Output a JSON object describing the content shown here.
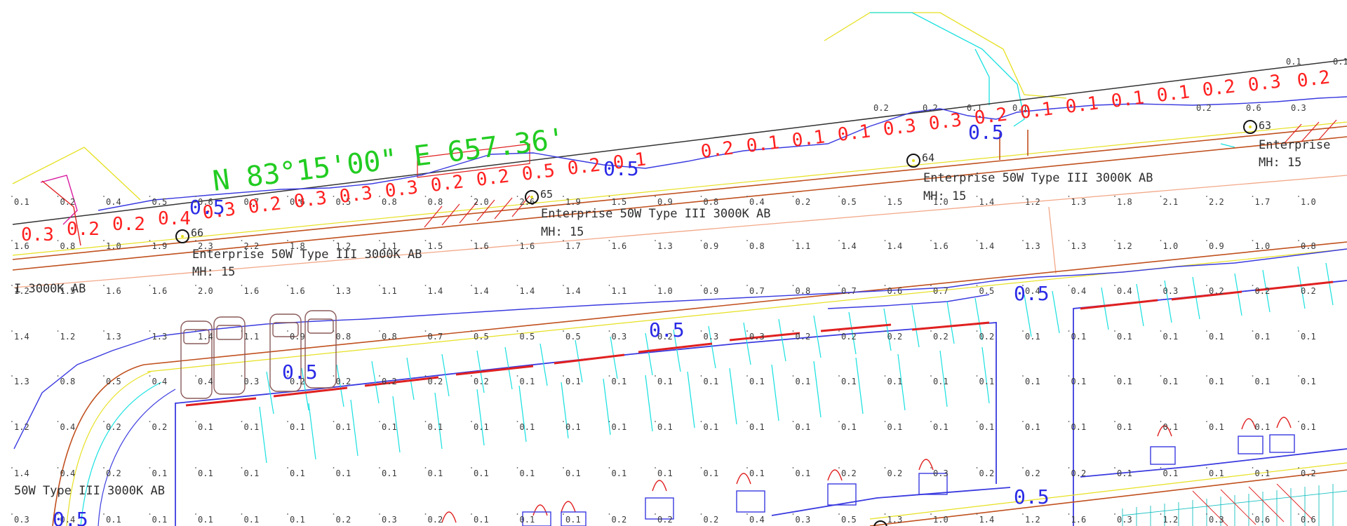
{
  "bearing": "N 83°15'00\" E 657.36'",
  "fixtures": [
    {
      "id": "66",
      "description": "Enterprise 50W Type III 3000K AB",
      "mh": "MH: 15"
    },
    {
      "id": "65",
      "description": "Enterprise 50W Type III 3000K AB",
      "mh": "MH: 15"
    },
    {
      "id": "64",
      "description": "Enterprise 50W Type III 3000K AB",
      "mh": "MH: 15"
    },
    {
      "id": "63",
      "description": "Enterprise",
      "mh": "MH: 15"
    }
  ],
  "partial_labels": {
    "left_upper": "I 3000K AB",
    "left_lower": "50W Type III 3000K AB"
  },
  "isolines_red": [
    "0.3",
    "0.2",
    "0.2",
    "0.4",
    "0.3",
    "0.2",
    "0.3",
    "0.3",
    "0.3",
    "0.2",
    "0.2",
    "0.5",
    "0.2",
    "0.1",
    "0.2",
    "0.1",
    "0.1",
    "0.1",
    "0.3",
    "0.3",
    "0.2",
    "0.1",
    "0.1",
    "0.1",
    "0.1",
    "0.2",
    "0.3",
    "0.2"
  ],
  "isolines_blue": [
    "0.5",
    "0.5",
    "0.5",
    "0.5",
    "0.5",
    "0.5",
    "0.5",
    "0.5"
  ],
  "grid_rows": [
    [
      "0.1",
      "0.2",
      "0.4",
      "0.5",
      "0.6",
      "0.7",
      "0.6",
      "0.5",
      "0.8",
      "0.8",
      "2.0",
      "2.6",
      "1.9",
      "1.5",
      "0.9",
      "0.8",
      "0.4",
      "0.2",
      "0.5",
      "1.5",
      "1.0",
      "1.4",
      "1.2",
      "1.3",
      "1.8",
      "2.1",
      "2.2",
      "1.7",
      "1.0"
    ],
    [
      "1.6",
      "0.8",
      "1.0",
      "1.9",
      "2.3",
      "2.2",
      "1.8",
      "1.2",
      "1.1",
      "1.5",
      "1.6",
      "1.6",
      "1.7",
      "1.6",
      "1.3",
      "0.9",
      "0.8",
      "1.1",
      "1.4",
      "1.4",
      "1.6",
      "1.4",
      "1.3",
      "1.3",
      "1.2",
      "1.0",
      "0.9",
      "1.0",
      "0.8"
    ],
    [
      "1.2",
      "1.5",
      "1.6",
      "1.6",
      "2.0",
      "1.6",
      "1.6",
      "1.3",
      "1.1",
      "1.4",
      "1.4",
      "1.4",
      "1.4",
      "1.1",
      "1.0",
      "0.9",
      "0.7",
      "0.8",
      "0.7",
      "0.6",
      "0.7",
      "0.5",
      "0.4",
      "0.4",
      "0.4",
      "0.3",
      "0.2",
      "0.2",
      "0.2"
    ],
    [
      "1.4",
      "1.2",
      "1.3",
      "1.3",
      "1.4",
      "1.1",
      "0.9",
      "0.8",
      "0.8",
      "0.7",
      "0.5",
      "0.5",
      "0.5",
      "0.3",
      "0.2",
      "0.3",
      "0.3",
      "0.2",
      "0.2",
      "0.2",
      "0.2",
      "0.2",
      "0.1",
      "0.1",
      "0.1",
      "0.1",
      "0.1",
      "0.1",
      "0.1"
    ],
    [
      "1.3",
      "0.8",
      "0.5",
      "0.4",
      "0.4",
      "0.3",
      "0.2",
      "0.2",
      "0.2",
      "0.2",
      "0.2",
      "0.1",
      "0.1",
      "0.1",
      "0.1",
      "0.1",
      "0.1",
      "0.1",
      "0.1",
      "0.1",
      "0.1",
      "0.1",
      "0.1",
      "0.1",
      "0.1",
      "0.1",
      "0.1",
      "0.1",
      "0.1"
    ],
    [
      "1.2",
      "0.4",
      "0.2",
      "0.2",
      "0.1",
      "0.1",
      "0.1",
      "0.1",
      "0.1",
      "0.1",
      "0.1",
      "0.1",
      "0.1",
      "0.1",
      "0.1",
      "0.1",
      "0.1",
      "0.1",
      "0.1",
      "0.1",
      "0.1",
      "0.1",
      "0.1",
      "0.1",
      "0.1",
      "0.1",
      "0.1",
      "0.1",
      "0.1"
    ],
    [
      "1.4",
      "0.4",
      "0.2",
      "0.1",
      "0.1",
      "0.1",
      "0.1",
      "0.1",
      "0.1",
      "0.1",
      "0.1",
      "0.1",
      "0.1",
      "0.1",
      "0.1",
      "0.1",
      "0.1",
      "0.1",
      "0.2",
      "0.2",
      "0.3",
      "0.2",
      "0.2",
      "0.2",
      "0.1",
      "0.1",
      "0.1",
      "0.1",
      "0.2"
    ],
    [
      "0.3",
      "0.4",
      "0.1",
      "0.1",
      "0.1",
      "0.1",
      "0.1",
      "0.2",
      "0.3",
      "0.2",
      "0.1",
      "0.1",
      "0.1",
      "0.2",
      "0.2",
      "0.2",
      "0.4",
      "0.3",
      "0.5",
      "1.3",
      "1.0",
      "1.4",
      "1.2",
      "1.6",
      "0.3",
      "1.2",
      "0.3",
      "0.6",
      "0.6"
    ]
  ],
  "grid_top": [
    "0.2",
    "0.2",
    "0.1",
    "0.1",
    "0.2",
    "0.6",
    "0.3",
    "0.1",
    "0.1"
  ],
  "colors": {
    "isoline_red": "#ff2020",
    "isoline_blue": "#2a2ae6",
    "bearing": "#22cc22",
    "curb": "#c0501e",
    "parking": "#3a3ae0",
    "cyan": "#18e0e0",
    "yellow": "#e6e020"
  }
}
